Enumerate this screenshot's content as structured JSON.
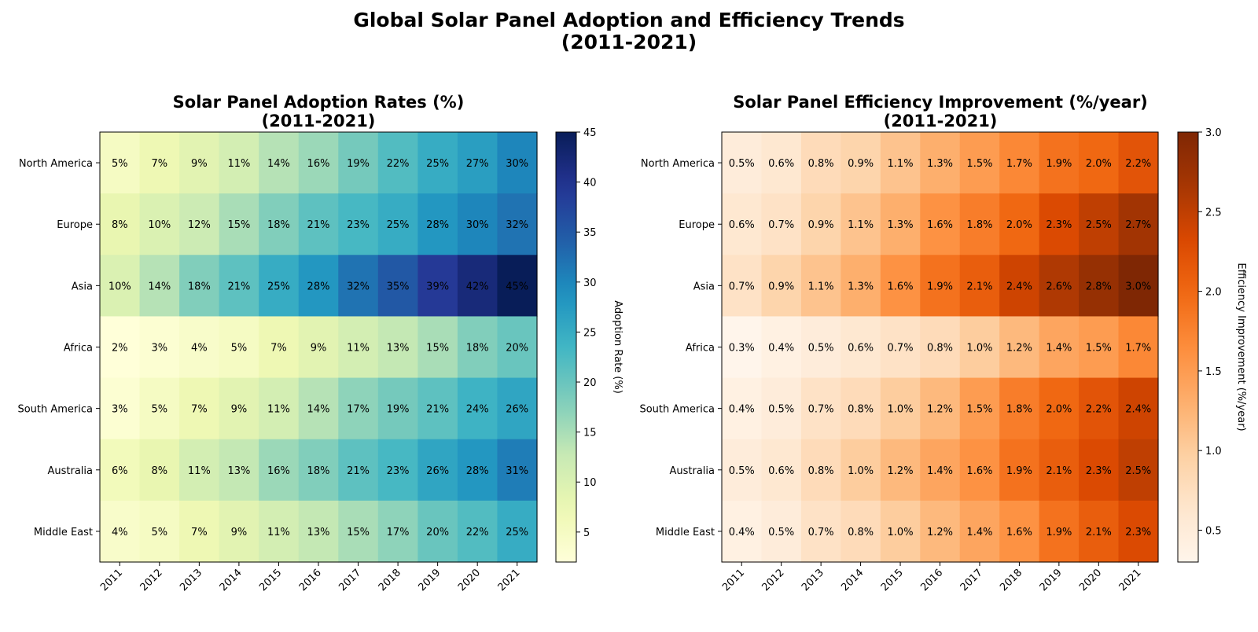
{
  "suptitle": [
    "Global Solar Panel Adoption and Efficiency Trends",
    "(2011-2021)"
  ],
  "chart_data": [
    {
      "type": "heatmap",
      "title": [
        "Solar Panel Adoption Rates (%)",
        "(2011-2021)"
      ],
      "x": [
        "2011",
        "2012",
        "2013",
        "2014",
        "2015",
        "2016",
        "2017",
        "2018",
        "2019",
        "2020",
        "2021"
      ],
      "y": [
        "North America",
        "Europe",
        "Asia",
        "Africa",
        "South America",
        "Australia",
        "Middle East"
      ],
      "values": [
        [
          5,
          7,
          9,
          11,
          14,
          16,
          19,
          22,
          25,
          27,
          30
        ],
        [
          8,
          10,
          12,
          15,
          18,
          21,
          23,
          25,
          28,
          30,
          32
        ],
        [
          10,
          14,
          18,
          21,
          25,
          28,
          32,
          35,
          39,
          42,
          45
        ],
        [
          2,
          3,
          4,
          5,
          7,
          9,
          11,
          13,
          15,
          18,
          20
        ],
        [
          3,
          5,
          7,
          9,
          11,
          14,
          17,
          19,
          21,
          24,
          26
        ],
        [
          6,
          8,
          11,
          13,
          16,
          18,
          21,
          23,
          26,
          28,
          31
        ],
        [
          4,
          5,
          7,
          9,
          11,
          13,
          15,
          17,
          20,
          22,
          25
        ]
      ],
      "value_format": "{v}%",
      "colormap": "YlGnBu",
      "vmin": 2,
      "vmax": 45,
      "colorbar_label": "Adoption Rate (%)",
      "colorbar_ticks": [
        "5",
        "10",
        "15",
        "20",
        "25",
        "30",
        "35",
        "40",
        "45"
      ]
    },
    {
      "type": "heatmap",
      "title": [
        "Solar Panel Efficiency Improvement (%/year)",
        "(2011-2021)"
      ],
      "x": [
        "2011",
        "2012",
        "2013",
        "2014",
        "2015",
        "2016",
        "2017",
        "2018",
        "2019",
        "2020",
        "2021"
      ],
      "y": [
        "North America",
        "Europe",
        "Asia",
        "Africa",
        "South America",
        "Australia",
        "Middle East"
      ],
      "values": [
        [
          0.5,
          0.6,
          0.8,
          0.9,
          1.1,
          1.3,
          1.5,
          1.7,
          1.9,
          2.0,
          2.2
        ],
        [
          0.6,
          0.7,
          0.9,
          1.1,
          1.3,
          1.6,
          1.8,
          2.0,
          2.3,
          2.5,
          2.7
        ],
        [
          0.7,
          0.9,
          1.1,
          1.3,
          1.6,
          1.9,
          2.1,
          2.4,
          2.6,
          2.8,
          3.0
        ],
        [
          0.3,
          0.4,
          0.5,
          0.6,
          0.7,
          0.8,
          1.0,
          1.2,
          1.4,
          1.5,
          1.7
        ],
        [
          0.4,
          0.5,
          0.7,
          0.8,
          1.0,
          1.2,
          1.5,
          1.8,
          2.0,
          2.2,
          2.4
        ],
        [
          0.5,
          0.6,
          0.8,
          1.0,
          1.2,
          1.4,
          1.6,
          1.9,
          2.1,
          2.3,
          2.5
        ],
        [
          0.4,
          0.5,
          0.7,
          0.8,
          1.0,
          1.2,
          1.4,
          1.6,
          1.9,
          2.1,
          2.3
        ]
      ],
      "value_format": "{v}%",
      "decimals": 1,
      "colormap": "Oranges",
      "vmin": 0.3,
      "vmax": 3.0,
      "colorbar_label": "Efficiency Improvement (%/year)",
      "colorbar_ticks": [
        "0.5",
        "1.0",
        "1.5",
        "2.0",
        "2.5",
        "3.0"
      ]
    }
  ]
}
